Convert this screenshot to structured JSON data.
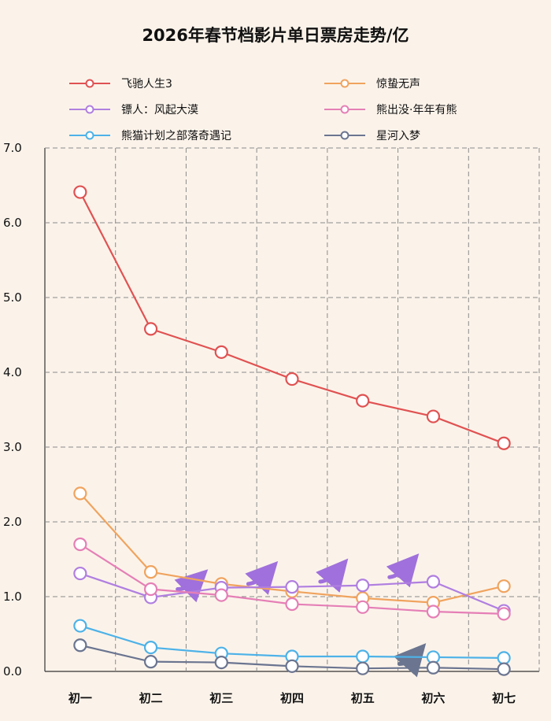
{
  "chart_data": {
    "type": "line",
    "title": "2026年春节档影片单日票房走势/亿",
    "xlabel": "",
    "ylabel": "",
    "categories": [
      "初一",
      "初二",
      "初三",
      "初四",
      "初五",
      "初六",
      "初七"
    ],
    "y_ticks": [
      "0.0",
      "1.0",
      "2.0",
      "3.0",
      "4.0",
      "5.0",
      "6.0",
      "7.0"
    ],
    "ylim": [
      0,
      7
    ],
    "grid": true,
    "legend_position": "top",
    "series": [
      {
        "name": "飞驰人生3",
        "color": "#e05252",
        "values": [
          6.41,
          4.58,
          4.27,
          3.91,
          3.62,
          3.41,
          3.05
        ]
      },
      {
        "name": "惊蛰无声",
        "color": "#f0a35e",
        "values": [
          2.38,
          1.33,
          1.17,
          1.07,
          0.98,
          0.92,
          1.14
        ]
      },
      {
        "name": "镖人：风起大漠",
        "color": "#b07fe0",
        "values": [
          1.31,
          0.99,
          1.12,
          1.13,
          1.15,
          1.2,
          0.81
        ]
      },
      {
        "name": "熊出没·年年有熊",
        "color": "#e57fb6",
        "values": [
          1.7,
          1.1,
          1.02,
          0.9,
          0.86,
          0.8,
          0.77
        ]
      },
      {
        "name": "熊猫计划之部落奇遇记",
        "color": "#4db2e8",
        "values": [
          0.61,
          0.32,
          0.24,
          0.2,
          0.2,
          0.19,
          0.18
        ]
      },
      {
        "name": "星河入梦",
        "color": "#6b7590",
        "values": [
          0.35,
          0.13,
          0.12,
          0.07,
          0.04,
          0.05,
          0.03
        ]
      }
    ],
    "trend_arrows": [
      {
        "from": [
          1.38,
          1.1
        ],
        "to": [
          1.65,
          1.22
        ],
        "color": "#a070dc"
      },
      {
        "from": [
          2.38,
          1.17
        ],
        "to": [
          2.65,
          1.32
        ],
        "color": "#a070dc"
      },
      {
        "from": [
          3.4,
          1.2
        ],
        "to": [
          3.65,
          1.35
        ],
        "color": "#a070dc"
      },
      {
        "from": [
          4.38,
          1.26
        ],
        "to": [
          4.65,
          1.42
        ],
        "color": "#a070dc"
      },
      {
        "from": [
          4.52,
          0.1
        ],
        "to": [
          4.75,
          0.22
        ],
        "color": "#6b7590"
      }
    ]
  }
}
